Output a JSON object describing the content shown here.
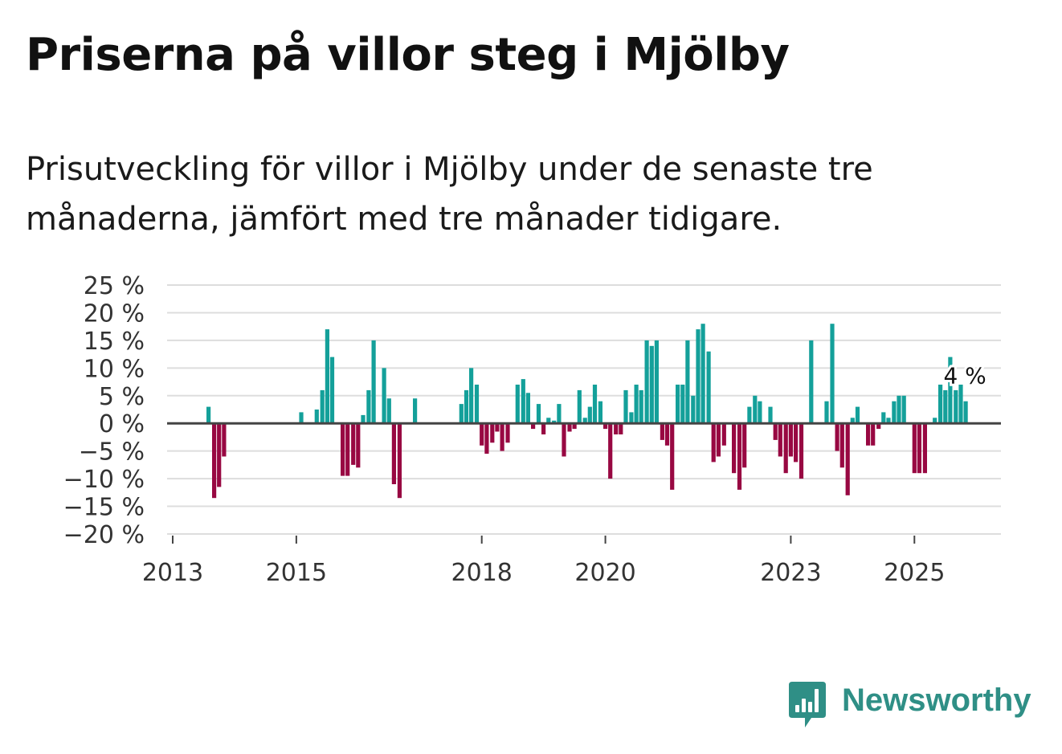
{
  "title": "Priserna på villor steg i Mjölby",
  "subtitle": "Prisutveckling för villor i Mjölby under de senaste tre månaderna, jämfört med tre månader tidigare.",
  "brand": {
    "name": "Newsworthy",
    "icon": "newsworthy-logo-icon",
    "color": "#2f8f86"
  },
  "colors": {
    "positive": "#14a09a",
    "negative": "#980842",
    "grid": "#dddddd",
    "zero": "#444444"
  },
  "chart_data": {
    "type": "bar",
    "title": "Priserna på villor steg i Mjölby",
    "xlabel": "",
    "ylabel": "",
    "ylim": [
      -20,
      25
    ],
    "xlim": [
      2013.0,
      2026.4
    ],
    "y_ticks": [
      25,
      20,
      15,
      10,
      5,
      0,
      -5,
      -10,
      -15,
      -20
    ],
    "y_tick_labels": [
      "25 %",
      "20 %",
      "15 %",
      "10 %",
      "5 %",
      "0 %",
      "−5 %",
      "−10 %",
      "−15 %",
      "−20 %"
    ],
    "x_ticks": [
      2013,
      2015,
      2018,
      2020,
      2023,
      2025
    ],
    "x_tick_labels": [
      "2013",
      "2015",
      "2018",
      "2020",
      "2023",
      "2025"
    ],
    "last_value_label": "4 %",
    "unit": "%",
    "grid": true,
    "legend": "none",
    "points": [
      [
        2013.58,
        3
      ],
      [
        2013.67,
        -13.5
      ],
      [
        2013.75,
        -11.5
      ],
      [
        2013.83,
        -6
      ],
      [
        2015.08,
        2
      ],
      [
        2015.33,
        2.5
      ],
      [
        2015.42,
        6
      ],
      [
        2015.5,
        17
      ],
      [
        2015.58,
        12
      ],
      [
        2015.75,
        -9.5
      ],
      [
        2015.83,
        -9.5
      ],
      [
        2015.92,
        -7.5
      ],
      [
        2016.0,
        -8
      ],
      [
        2016.08,
        1.5
      ],
      [
        2016.17,
        6
      ],
      [
        2016.25,
        15
      ],
      [
        2016.42,
        10
      ],
      [
        2016.5,
        4.5
      ],
      [
        2016.58,
        -11
      ],
      [
        2016.67,
        -13.5
      ],
      [
        2016.92,
        4.5
      ],
      [
        2017.67,
        3.5
      ],
      [
        2017.75,
        6
      ],
      [
        2017.83,
        10
      ],
      [
        2017.92,
        7
      ],
      [
        2018.0,
        -4
      ],
      [
        2018.08,
        -5.5
      ],
      [
        2018.17,
        -3.5
      ],
      [
        2018.25,
        -1.5
      ],
      [
        2018.33,
        -5
      ],
      [
        2018.42,
        -3.5
      ],
      [
        2018.58,
        7
      ],
      [
        2018.67,
        8
      ],
      [
        2018.75,
        5.5
      ],
      [
        2018.83,
        -1
      ],
      [
        2018.92,
        3.5
      ],
      [
        2019.0,
        -2
      ],
      [
        2019.08,
        1
      ],
      [
        2019.17,
        0.5
      ],
      [
        2019.25,
        3.5
      ],
      [
        2019.33,
        -6
      ],
      [
        2019.42,
        -1.5
      ],
      [
        2019.5,
        -1
      ],
      [
        2019.58,
        6
      ],
      [
        2019.67,
        1
      ],
      [
        2019.75,
        3
      ],
      [
        2019.83,
        7
      ],
      [
        2019.92,
        4
      ],
      [
        2020.0,
        -1
      ],
      [
        2020.08,
        -10
      ],
      [
        2020.17,
        -2
      ],
      [
        2020.25,
        -2
      ],
      [
        2020.33,
        6
      ],
      [
        2020.42,
        2
      ],
      [
        2020.5,
        7
      ],
      [
        2020.58,
        6
      ],
      [
        2020.67,
        15
      ],
      [
        2020.75,
        14
      ],
      [
        2020.83,
        15
      ],
      [
        2020.92,
        -3
      ],
      [
        2021.0,
        -4
      ],
      [
        2021.08,
        -12
      ],
      [
        2021.17,
        7
      ],
      [
        2021.25,
        7
      ],
      [
        2021.33,
        15
      ],
      [
        2021.42,
        5
      ],
      [
        2021.5,
        17
      ],
      [
        2021.58,
        18
      ],
      [
        2021.67,
        13
      ],
      [
        2021.75,
        -7
      ],
      [
        2021.83,
        -6
      ],
      [
        2021.92,
        -4
      ],
      [
        2022.08,
        -9
      ],
      [
        2022.17,
        -12
      ],
      [
        2022.25,
        -8
      ],
      [
        2022.33,
        3
      ],
      [
        2022.42,
        5
      ],
      [
        2022.5,
        4
      ],
      [
        2022.67,
        3
      ],
      [
        2022.75,
        -3
      ],
      [
        2022.83,
        -6
      ],
      [
        2022.92,
        -9
      ],
      [
        2023.0,
        -6
      ],
      [
        2023.08,
        -7
      ],
      [
        2023.17,
        -10
      ],
      [
        2023.33,
        15
      ],
      [
        2023.58,
        4
      ],
      [
        2023.67,
        18
      ],
      [
        2023.75,
        -5
      ],
      [
        2023.83,
        -8
      ],
      [
        2023.92,
        -13
      ],
      [
        2024.0,
        1
      ],
      [
        2024.08,
        3
      ],
      [
        2024.25,
        -4
      ],
      [
        2024.33,
        -4
      ],
      [
        2024.42,
        -1
      ],
      [
        2024.5,
        2
      ],
      [
        2024.58,
        1
      ],
      [
        2024.67,
        4
      ],
      [
        2024.75,
        5
      ],
      [
        2024.83,
        5
      ],
      [
        2025.0,
        -9
      ],
      [
        2025.08,
        -9
      ],
      [
        2025.17,
        -9
      ],
      [
        2025.33,
        1
      ],
      [
        2025.42,
        7
      ],
      [
        2025.5,
        6
      ],
      [
        2025.58,
        12
      ],
      [
        2025.67,
        6
      ],
      [
        2025.75,
        7
      ],
      [
        2025.83,
        4
      ]
    ]
  }
}
